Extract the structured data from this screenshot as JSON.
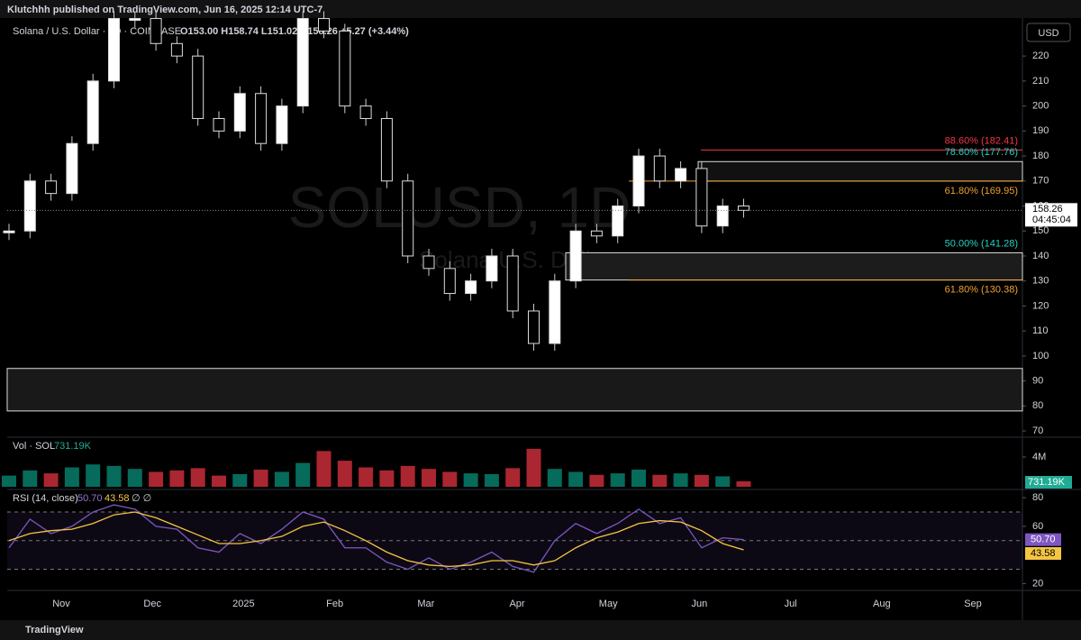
{
  "header": {
    "publisher": "Klutchhh published on TradingView.com, Jun 16, 2025 12:14 UTC-7",
    "currency": "USD"
  },
  "footer": {
    "brand": "TradingView"
  },
  "chart_data": {
    "type": "candlestick",
    "legend_title": "Solana / U.S. Dollar · 1D · COINBASE",
    "ohlc_text": "O153.00 H158.74 L151.02 C158.26 +5.27 (+3.44%)",
    "watermark": "SOLUSD, 1D",
    "watermark_sub": "Solana U.S. Dollar",
    "values": [
      150,
      170,
      165,
      185,
      210,
      235,
      235,
      225,
      220,
      195,
      190,
      205,
      185,
      200,
      235,
      230,
      200,
      195,
      170,
      140,
      135,
      125,
      130,
      140,
      118,
      105,
      130,
      150,
      148,
      160,
      180,
      170,
      175,
      152,
      160,
      158.26
    ],
    "up_color": "#089981",
    "down_color": "#f23645",
    "ylim": [
      67.5,
      235.2
    ],
    "yticks": [
      220,
      210,
      200,
      190,
      180,
      170,
      160,
      150,
      140,
      130,
      120,
      110,
      100,
      90,
      80,
      70
    ],
    "last_price": 158.26,
    "countdown": "04:45:04",
    "fib_levels": [
      {
        "label": "88.60% (182.41)",
        "value": 182.41,
        "color": "#f23645"
      },
      {
        "label": "78.60% (177.76)",
        "value": 177.76,
        "color": "#22d3c5"
      },
      {
        "label": "61.80% (169.95)",
        "value": 169.95,
        "color": "#f0a030"
      },
      {
        "label": "50.00% (141.28)",
        "value": 141.28,
        "color": "#22d3c5"
      },
      {
        "label": "61.80% (130.38)",
        "value": 130.38,
        "color": "#f0a030"
      }
    ],
    "zone": {
      "top": 95,
      "bottom": 78
    },
    "months": [
      "Nov",
      "Dec",
      "2025",
      "Feb",
      "Mar",
      "Apr",
      "May",
      "Jun",
      "Jul",
      "Aug",
      "Sep"
    ],
    "volume": {
      "title": "Vol · SOL",
      "last_label": "731.19K",
      "last": 731190,
      "values": [
        1500000,
        2200000,
        1800000,
        2600000,
        3000000,
        2800000,
        2400000,
        2000000,
        2200000,
        2500000,
        1500000,
        1700000,
        2300000,
        2000000,
        3200000,
        4800000,
        3500000,
        2600000,
        2200000,
        2800000,
        2400000,
        2000000,
        1800000,
        1700000,
        2500000,
        5100000,
        2400000,
        2000000,
        1600000,
        1800000,
        2300000,
        1600000,
        1800000,
        1600000,
        1400000,
        731190
      ],
      "ylim": [
        0,
        6300000
      ],
      "yticks": [
        {
          "value": 4000000,
          "label": "4M"
        }
      ]
    },
    "rsi": {
      "title": "RSI (14, close)",
      "value": 50.7,
      "value_label": "50.70",
      "ma": 43.58,
      "extra": "∅ ∅",
      "values": [
        45,
        65,
        55,
        60,
        70,
        75,
        72,
        60,
        58,
        45,
        42,
        55,
        48,
        58,
        70,
        65,
        45,
        45,
        35,
        30,
        38,
        30,
        35,
        42,
        32,
        28,
        50,
        62,
        55,
        62,
        72,
        62,
        66,
        45,
        52,
        50.7
      ],
      "ma_values": [
        50,
        55,
        57,
        58,
        62,
        68,
        70,
        66,
        60,
        54,
        48,
        48,
        50,
        53,
        60,
        63,
        57,
        50,
        42,
        36,
        33,
        32,
        33,
        36,
        36,
        33,
        36,
        45,
        52,
        56,
        62,
        64,
        63,
        57,
        48,
        43.58
      ],
      "color": "#7e57c2",
      "ma_color": "#f5c542",
      "ylim": [
        16.5,
        84.5
      ],
      "yticks": [
        80,
        60,
        20
      ],
      "levels": [
        70,
        50,
        30
      ]
    }
  }
}
